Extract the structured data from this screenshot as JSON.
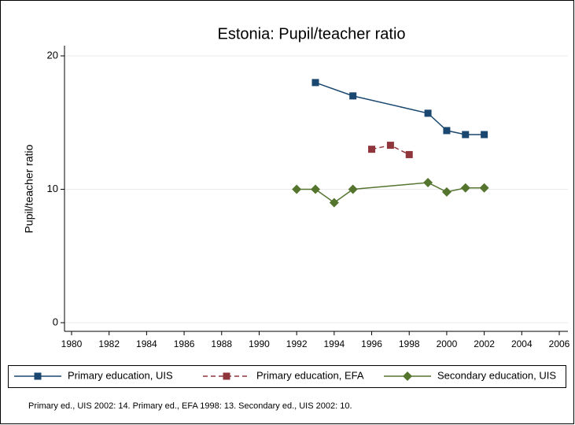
{
  "chart_data": {
    "type": "line",
    "title": "Estonia: Pupil/teacher ratio",
    "y_label": "Pupil/teacher ratio",
    "note": "Primary ed., UIS 2002: 14. Primary ed., EFA 1998: 13. Secondary ed., UIS 2002: 10.",
    "xlim": [
      1980,
      2006
    ],
    "xticks": [
      1980,
      1982,
      1984,
      1986,
      1988,
      1990,
      1992,
      1994,
      1996,
      1998,
      2000,
      2002,
      2004,
      2006
    ],
    "ylim": [
      0,
      20
    ],
    "yticks": [
      0,
      10,
      20
    ],
    "grid": true,
    "legend": "bottom",
    "series": [
      {
        "name": "Primary education, UIS",
        "color": "#1a476f",
        "marker": "square",
        "dash": false,
        "x": [
          1993,
          1995,
          1999,
          2000,
          2001,
          2002
        ],
        "values": [
          18.0,
          17.0,
          15.7,
          14.4,
          14.1,
          14.1
        ]
      },
      {
        "name": "Primary education, EFA",
        "color": "#90353b",
        "marker": "square",
        "dash": true,
        "x": [
          1996,
          1997,
          1998
        ],
        "values": [
          13.0,
          13.3,
          12.6
        ]
      },
      {
        "name": "Secondary education, UIS",
        "color": "#55752f",
        "marker": "diamond",
        "dash": false,
        "x": [
          1992,
          1993,
          1994,
          1995,
          1999,
          2000,
          2001,
          2002
        ],
        "values": [
          10.0,
          10.0,
          9.0,
          10.0,
          10.5,
          9.8,
          10.1,
          10.1
        ]
      }
    ]
  }
}
